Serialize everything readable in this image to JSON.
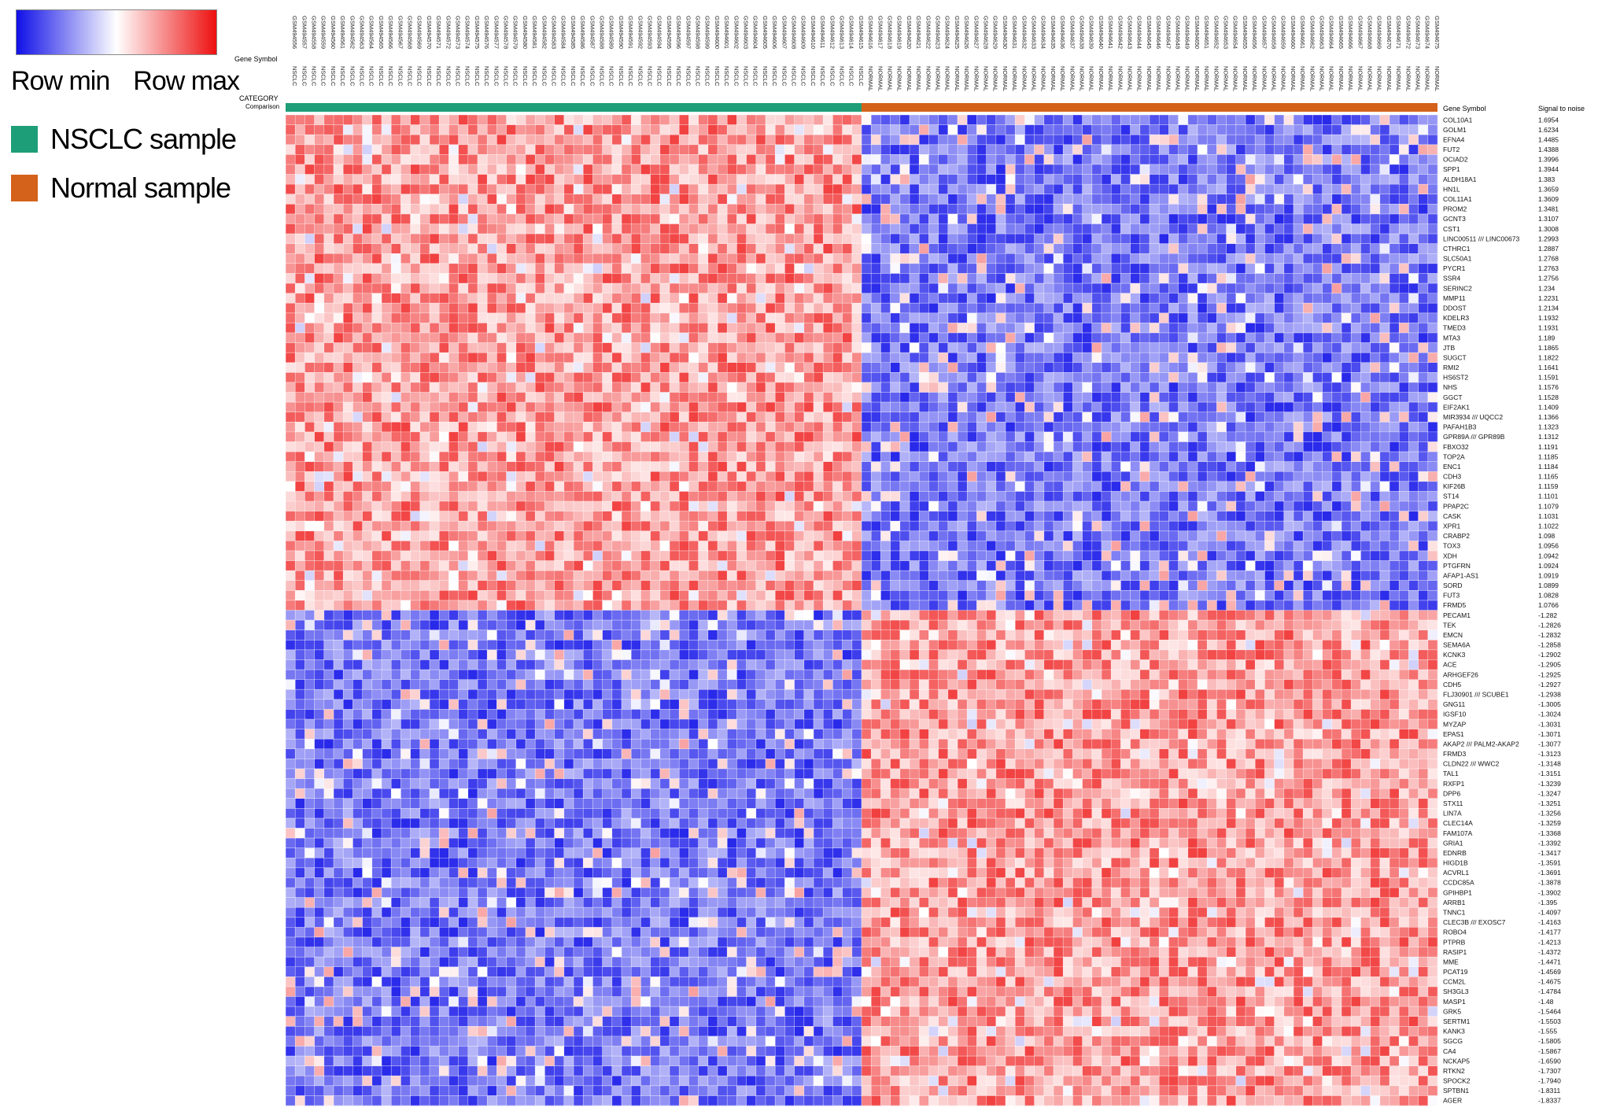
{
  "legend": {
    "row_min_label": "Row min",
    "row_max_label": "Row max",
    "colors": {
      "min": "#1010e8",
      "mid": "#ffffff",
      "max": "#ee1010"
    },
    "groups": [
      {
        "label": "NSCLC sample",
        "color": "#1e9e78"
      },
      {
        "label": "Normal sample",
        "color": "#d4621a"
      }
    ]
  },
  "header_labels": {
    "gene_symbol": "Gene Symbol",
    "category": "CATEGORY",
    "comparison": "Comparison",
    "right_gene_symbol": "Gene Symbol",
    "signal_to_noise": "Signal to noise"
  },
  "chart_data": {
    "type": "heatmap",
    "title": "",
    "xlabel": "",
    "ylabel": "",
    "colorscale": "row-normalized blue-white-red",
    "columns": {
      "nsclc": [
        "GSM494556",
        "GSM494557",
        "GSM494558",
        "GSM494559",
        "GSM494560",
        "GSM494561",
        "GSM494562",
        "GSM494563",
        "GSM494564",
        "GSM494565",
        "GSM494566",
        "GSM494567",
        "GSM494568",
        "GSM494569",
        "GSM494570",
        "GSM494571",
        "GSM494572",
        "GSM494573",
        "GSM494574",
        "GSM494575",
        "GSM494576",
        "GSM494577",
        "GSM494578",
        "GSM494579",
        "GSM494580",
        "GSM494581",
        "GSM494582",
        "GSM494583",
        "GSM494584",
        "GSM494585",
        "GSM494586",
        "GSM494587",
        "GSM494588",
        "GSM494589",
        "GSM494590",
        "GSM494591",
        "GSM494592",
        "GSM494593",
        "GSM494594",
        "GSM494595",
        "GSM494596",
        "GSM494597",
        "GSM494598",
        "GSM494599",
        "GSM494600",
        "GSM494601",
        "GSM494602",
        "GSM494603",
        "GSM494604",
        "GSM494605",
        "GSM494606",
        "GSM494607",
        "GSM494608",
        "GSM494609",
        "GSM494610",
        "GSM494611",
        "GSM494612",
        "GSM494613",
        "GSM494614",
        "GSM494615"
      ],
      "normal": [
        "GSM494616",
        "GSM494617",
        "GSM494618",
        "GSM494619",
        "GSM494620",
        "GSM494621",
        "GSM494622",
        "GSM494623",
        "GSM494624",
        "GSM494625",
        "GSM494626",
        "GSM494627",
        "GSM494628",
        "GSM494629",
        "GSM494630",
        "GSM494631",
        "GSM494632",
        "GSM494633",
        "GSM494634",
        "GSM494635",
        "GSM494636",
        "GSM494637",
        "GSM494638",
        "GSM494639",
        "GSM494640",
        "GSM494641",
        "GSM494642",
        "GSM494643",
        "GSM494644",
        "GSM494645",
        "GSM494646",
        "GSM494647",
        "GSM494648",
        "GSM494649",
        "GSM494650",
        "GSM494651",
        "GSM494652",
        "GSM494653",
        "GSM494654",
        "GSM494655",
        "GSM494656",
        "GSM494657",
        "GSM494658",
        "GSM494659",
        "GSM494660",
        "GSM494661",
        "GSM494662",
        "GSM494663",
        "GSM494664",
        "GSM494665",
        "GSM494666",
        "GSM494667",
        "GSM494668",
        "GSM494669",
        "GSM494670",
        "GSM494671",
        "GSM494672",
        "GSM494673",
        "GSM494674",
        "GSM494675"
      ]
    },
    "column_prefix": {
      "nsclc": "NSCLC",
      "normal": "NORMAL"
    },
    "genes": [
      {
        "symbol": "COL10A1",
        "snr": "1.6954"
      },
      {
        "symbol": "GOLM1",
        "snr": "1.6234"
      },
      {
        "symbol": "EFNA4",
        "snr": "1.4485"
      },
      {
        "symbol": "FUT2",
        "snr": "1.4388"
      },
      {
        "symbol": "OCIAD2",
        "snr": "1.3996"
      },
      {
        "symbol": "SPP1",
        "snr": "1.3944"
      },
      {
        "symbol": "ALDH18A1",
        "snr": "1.383"
      },
      {
        "symbol": "HN1L",
        "snr": "1.3659"
      },
      {
        "symbol": "COL11A1",
        "snr": "1.3609"
      },
      {
        "symbol": "PROM2",
        "snr": "1.3481"
      },
      {
        "symbol": "GCNT3",
        "snr": "1.3107"
      },
      {
        "symbol": "CST1",
        "snr": "1.3008"
      },
      {
        "symbol": "LINC00511 /// LINC00673",
        "snr": "1.2993"
      },
      {
        "symbol": "CTHRC1",
        "snr": "1.2887"
      },
      {
        "symbol": "SLC50A1",
        "snr": "1.2768"
      },
      {
        "symbol": "PYCR1",
        "snr": "1.2763"
      },
      {
        "symbol": "SSR4",
        "snr": "1.2756"
      },
      {
        "symbol": "SERINC2",
        "snr": "1.234"
      },
      {
        "symbol": "MMP11",
        "snr": "1.2231"
      },
      {
        "symbol": "DDOST",
        "snr": "1.2134"
      },
      {
        "symbol": "KDELR3",
        "snr": "1.1932"
      },
      {
        "symbol": "TMED3",
        "snr": "1.1931"
      },
      {
        "symbol": "MTA3",
        "snr": "1.189"
      },
      {
        "symbol": "JTB",
        "snr": "1.1865"
      },
      {
        "symbol": "SUGCT",
        "snr": "1.1822"
      },
      {
        "symbol": "RMI2",
        "snr": "1.1641"
      },
      {
        "symbol": "HS6ST2",
        "snr": "1.1591"
      },
      {
        "symbol": "NHS",
        "snr": "1.1576"
      },
      {
        "symbol": "GGCT",
        "snr": "1.1528"
      },
      {
        "symbol": "EIF2AK1",
        "snr": "1.1409"
      },
      {
        "symbol": "MIR3934 /// UQCC2",
        "snr": "1.1366"
      },
      {
        "symbol": "PAFAH1B3",
        "snr": "1.1323"
      },
      {
        "symbol": "GPR89A /// GPR89B",
        "snr": "1.1312"
      },
      {
        "symbol": "FBXO32",
        "snr": "1.1191"
      },
      {
        "symbol": "TOP2A",
        "snr": "1.1185"
      },
      {
        "symbol": "ENC1",
        "snr": "1.1184"
      },
      {
        "symbol": "CDH3",
        "snr": "1.1165"
      },
      {
        "symbol": "KIF26B",
        "snr": "1.1159"
      },
      {
        "symbol": "ST14",
        "snr": "1.1101"
      },
      {
        "symbol": "PPAP2C",
        "snr": "1.1079"
      },
      {
        "symbol": "CASK",
        "snr": "1.1031"
      },
      {
        "symbol": "XPR1",
        "snr": "1.1022"
      },
      {
        "symbol": "CRABP2",
        "snr": "1.098"
      },
      {
        "symbol": "TOX3",
        "snr": "1.0956"
      },
      {
        "symbol": "XDH",
        "snr": "1.0942"
      },
      {
        "symbol": "PTGFRN",
        "snr": "1.0924"
      },
      {
        "symbol": "AFAP1-AS1",
        "snr": "1.0919"
      },
      {
        "symbol": "SORD",
        "snr": "1.0899"
      },
      {
        "symbol": "FUT3",
        "snr": "1.0828"
      },
      {
        "symbol": "FRMD5",
        "snr": "1.0766"
      },
      {
        "symbol": "PECAM1",
        "snr": "-1.282"
      },
      {
        "symbol": "TEK",
        "snr": "-1.2826"
      },
      {
        "symbol": "EMCN",
        "snr": "-1.2832"
      },
      {
        "symbol": "SEMA6A",
        "snr": "-1.2858"
      },
      {
        "symbol": "KCNK3",
        "snr": "-1.2902"
      },
      {
        "symbol": "ACE",
        "snr": "-1.2905"
      },
      {
        "symbol": "ARHGEF26",
        "snr": "-1.2925"
      },
      {
        "symbol": "CDH5",
        "snr": "-1.2927"
      },
      {
        "symbol": "FLJ30901 /// SCUBE1",
        "snr": "-1.2938"
      },
      {
        "symbol": "GNG11",
        "snr": "-1.3005"
      },
      {
        "symbol": "IGSF10",
        "snr": "-1.3024"
      },
      {
        "symbol": "MYZAP",
        "snr": "-1.3031"
      },
      {
        "symbol": "EPAS1",
        "snr": "-1.3071"
      },
      {
        "symbol": "AKAP2 /// PALM2-AKAP2",
        "snr": "-1.3077"
      },
      {
        "symbol": "FRMD3",
        "snr": "-1.3123"
      },
      {
        "symbol": "CLDN22 /// WWC2",
        "snr": "-1.3148"
      },
      {
        "symbol": "TAL1",
        "snr": "-1.3151"
      },
      {
        "symbol": "RXFP1",
        "snr": "-1.3239"
      },
      {
        "symbol": "DPP6",
        "snr": "-1.3247"
      },
      {
        "symbol": "STX11",
        "snr": "-1.3251"
      },
      {
        "symbol": "LIN7A",
        "snr": "-1.3256"
      },
      {
        "symbol": "CLEC14A",
        "snr": "-1.3259"
      },
      {
        "symbol": "FAM107A",
        "snr": "-1.3368"
      },
      {
        "symbol": "GRIA1",
        "snr": "-1.3392"
      },
      {
        "symbol": "EDNRB",
        "snr": "-1.3417"
      },
      {
        "symbol": "HIGD1B",
        "snr": "-1.3591"
      },
      {
        "symbol": "ACVRL1",
        "snr": "-1.3691"
      },
      {
        "symbol": "CCDC85A",
        "snr": "-1.3878"
      },
      {
        "symbol": "GPIHBP1",
        "snr": "-1.3902"
      },
      {
        "symbol": "ARRB1",
        "snr": "-1.395"
      },
      {
        "symbol": "TNNC1",
        "snr": "-1.4097"
      },
      {
        "symbol": "CLEC3B /// EXOSC7",
        "snr": "-1.4163"
      },
      {
        "symbol": "ROBO4",
        "snr": "-1.4177"
      },
      {
        "symbol": "PTPRB",
        "snr": "-1.4213"
      },
      {
        "symbol": "RASIP1",
        "snr": "-1.4372"
      },
      {
        "symbol": "MME",
        "snr": "-1.4471"
      },
      {
        "symbol": "PCAT19",
        "snr": "-1.4569"
      },
      {
        "symbol": "CCM2L",
        "snr": "-1.4675"
      },
      {
        "symbol": "SH3GL3",
        "snr": "-1.4784"
      },
      {
        "symbol": "MASP1",
        "snr": "-1.48"
      },
      {
        "symbol": "GRK5",
        "snr": "-1.5464"
      },
      {
        "symbol": "SERTM1",
        "snr": "-1.5503"
      },
      {
        "symbol": "KANK3",
        "snr": "-1.555"
      },
      {
        "symbol": "SGCG",
        "snr": "-1.5805"
      },
      {
        "symbol": "CA4",
        "snr": "-1.5867"
      },
      {
        "symbol": "NCKAP5",
        "snr": "-1.6590"
      },
      {
        "symbol": "RTKN2",
        "snr": "-1.7307"
      },
      {
        "symbol": "SPOCK2",
        "snr": "-1.7940"
      },
      {
        "symbol": "SPTBN1",
        "snr": "-1.8311"
      },
      {
        "symbol": "AGER",
        "snr": "-1.8337"
      }
    ],
    "pattern": "upper 50 genes high (red) in NSCLC, low (blue) in Normal; lower 50 genes low (blue) in NSCLC, high (red) in Normal"
  }
}
